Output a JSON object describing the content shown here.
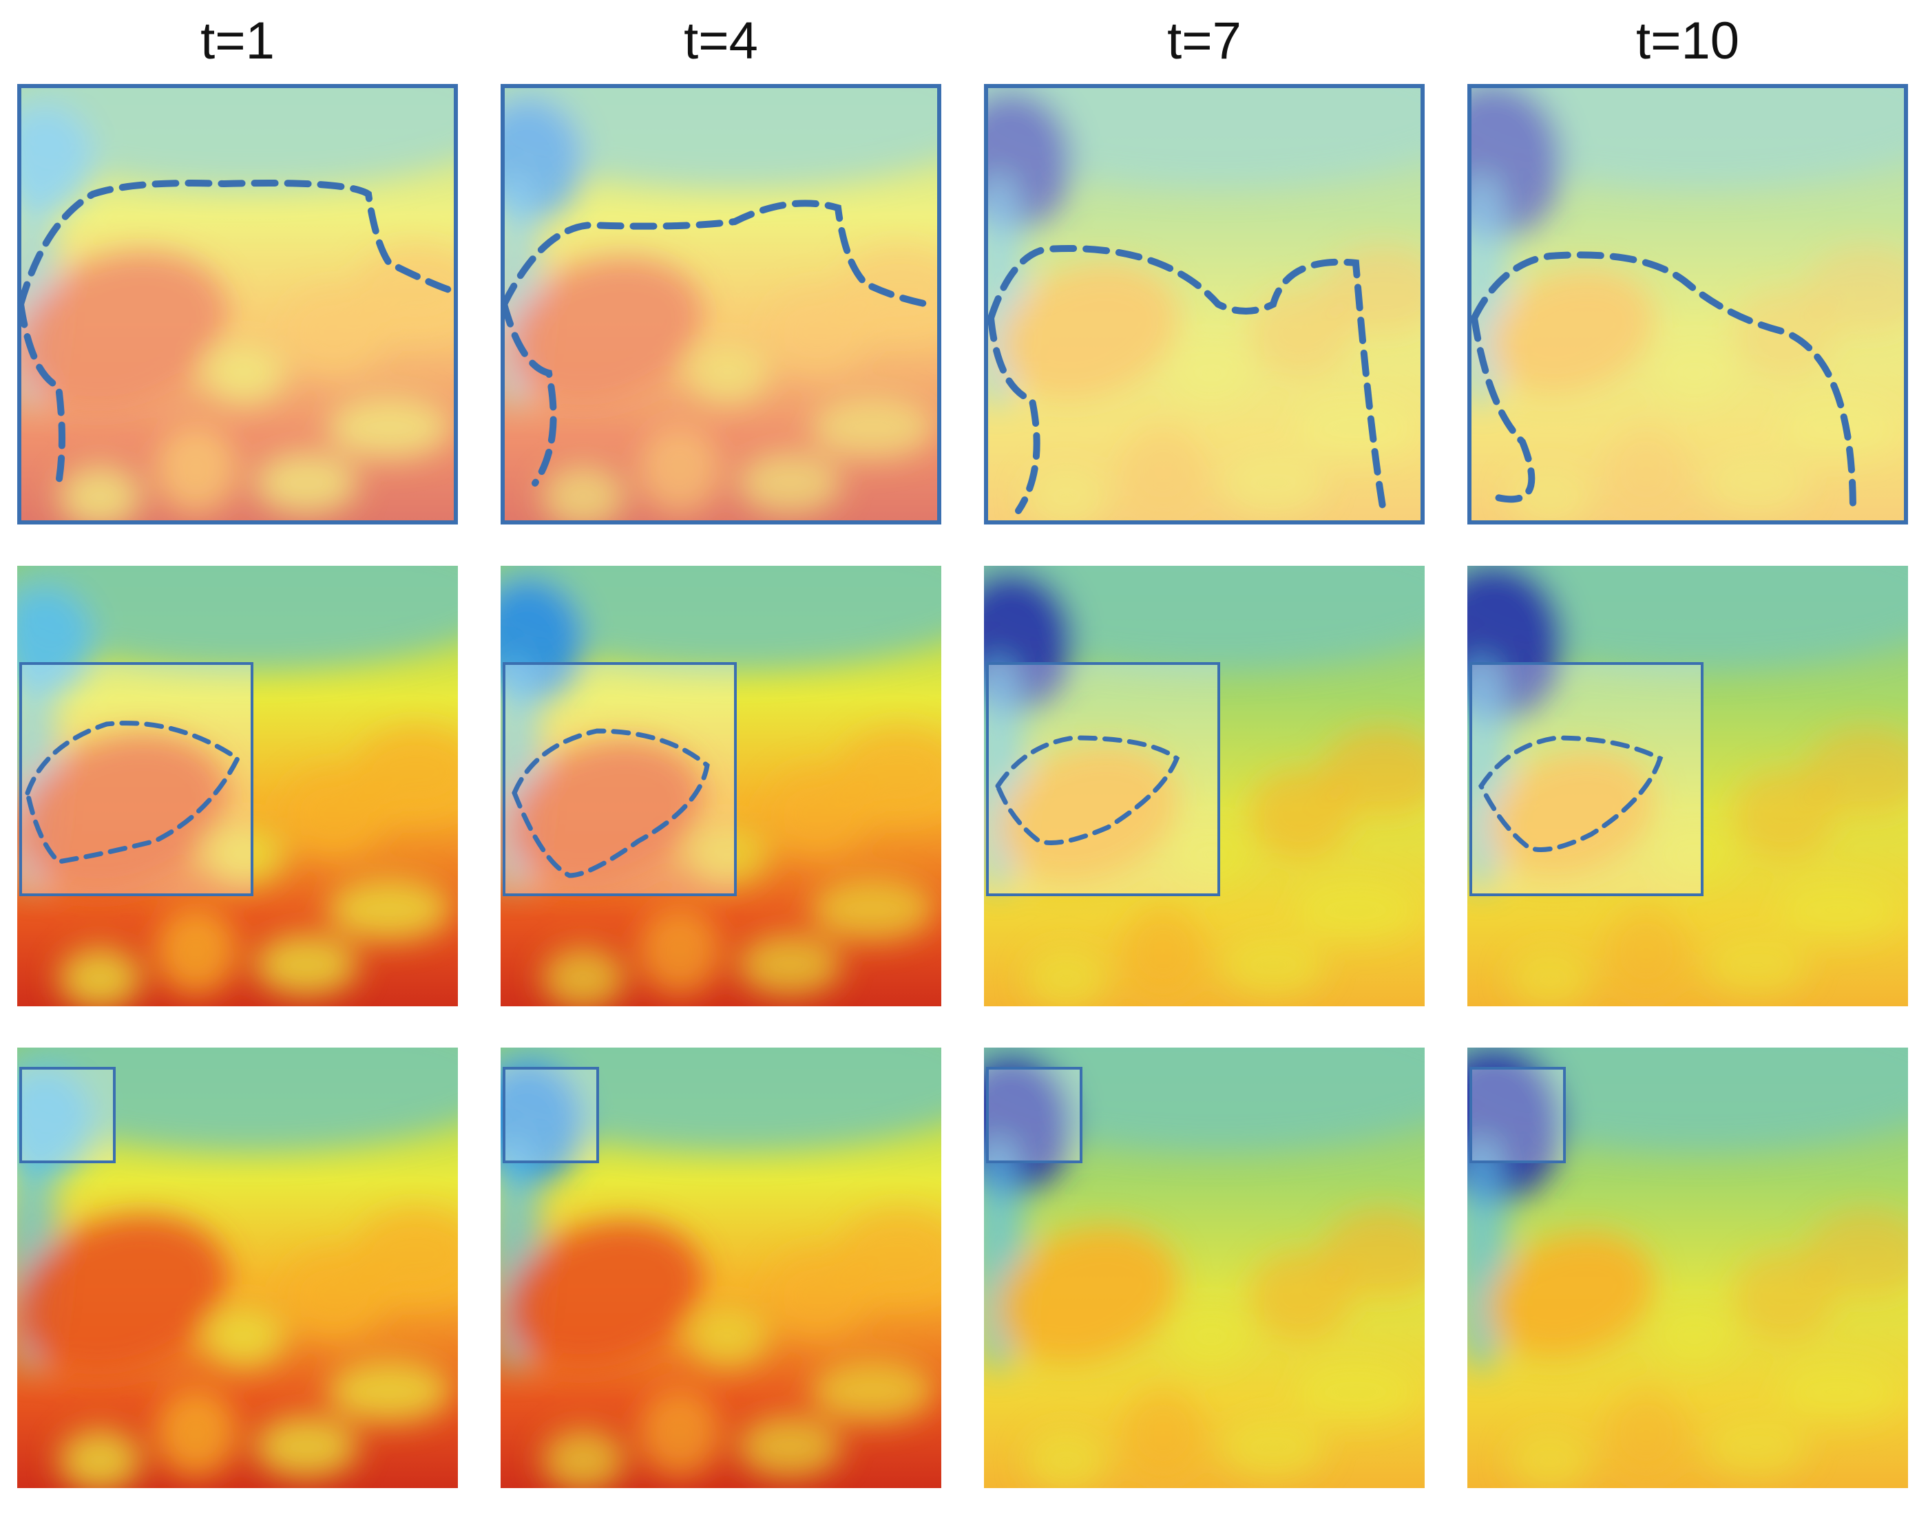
{
  "figure": {
    "column_titles": [
      "t=1",
      "t=4",
      "t=7",
      "t=10"
    ],
    "row_descriptions": [
      "",
      "",
      ""
    ],
    "colormap": [
      "#2b3aa8",
      "#2d8fe0",
      "#5cc0e8",
      "#8fcf6a",
      "#e9ea3c",
      "#f7b12a",
      "#e8561f",
      "#c41d16"
    ],
    "outline_color": "#3a6fb0"
  }
}
